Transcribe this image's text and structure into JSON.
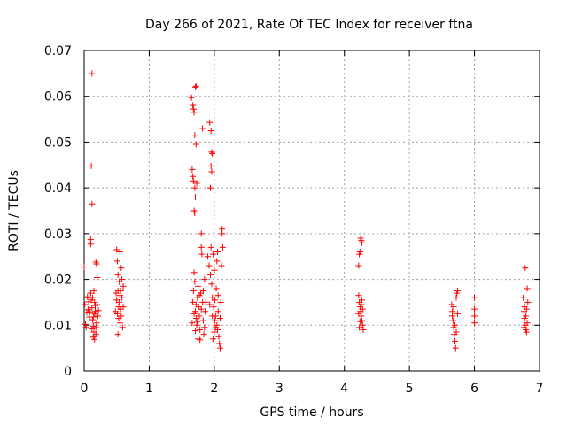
{
  "chart_data": {
    "type": "scatter",
    "title": "Day 266 of 2021, Rate Of TEC Index for receiver ftna",
    "xlabel": "GPS time / hours",
    "ylabel": "ROTI / TECUs",
    "xlim": [
      0,
      7
    ],
    "ylim": [
      0,
      0.07
    ],
    "xticks": [
      0,
      1,
      2,
      3,
      4,
      5,
      6,
      7
    ],
    "xtick_labels": [
      "0",
      "1",
      "2",
      "3",
      "4",
      "5",
      "6",
      "7"
    ],
    "yticks": [
      0,
      0.01,
      0.02,
      0.03,
      0.04,
      0.05,
      0.06,
      0.07
    ],
    "ytick_labels": [
      "0",
      "0.01",
      "0.02",
      "0.03",
      "0.04",
      "0.05",
      "0.06",
      "0.07"
    ],
    "grid": true,
    "marker": "plus",
    "color": "#ff0000",
    "series": [
      {
        "name": "ftna",
        "points": [
          [
            0.0,
            0.0227
          ],
          [
            0.01,
            0.0145
          ],
          [
            0.02,
            0.0102
          ],
          [
            0.03,
            0.0095
          ],
          [
            0.04,
            0.0128
          ],
          [
            0.05,
            0.0162
          ],
          [
            0.06,
            0.0134
          ],
          [
            0.07,
            0.0151
          ],
          [
            0.08,
            0.0118
          ],
          [
            0.09,
            0.0129
          ],
          [
            0.1,
            0.0277
          ],
          [
            0.1,
            0.0287
          ],
          [
            0.11,
            0.0448
          ],
          [
            0.12,
            0.065
          ],
          [
            0.12,
            0.0365
          ],
          [
            0.1,
            0.017
          ],
          [
            0.11,
            0.0155
          ],
          [
            0.12,
            0.0138
          ],
          [
            0.13,
            0.0112
          ],
          [
            0.14,
            0.0098
          ],
          [
            0.15,
            0.0085
          ],
          [
            0.16,
            0.0125
          ],
          [
            0.17,
            0.0143
          ],
          [
            0.18,
            0.0238
          ],
          [
            0.19,
            0.0234
          ],
          [
            0.2,
            0.0204
          ],
          [
            0.21,
            0.012
          ],
          [
            0.14,
            0.0074
          ],
          [
            0.16,
            0.0069
          ],
          [
            0.18,
            0.008
          ],
          [
            0.13,
            0.016
          ],
          [
            0.15,
            0.0175
          ],
          [
            0.17,
            0.013
          ],
          [
            0.19,
            0.0105
          ],
          [
            0.2,
            0.0145
          ],
          [
            0.22,
            0.0132
          ],
          [
            0.12,
            0.0092
          ],
          [
            0.14,
            0.0118
          ],
          [
            0.16,
            0.015
          ],
          [
            0.18,
            0.0095
          ],
          [
            0.48,
            0.013
          ],
          [
            0.49,
            0.017
          ],
          [
            0.5,
            0.0265
          ],
          [
            0.5,
            0.0155
          ],
          [
            0.51,
            0.024
          ],
          [
            0.52,
            0.021
          ],
          [
            0.52,
            0.008
          ],
          [
            0.53,
            0.014
          ],
          [
            0.54,
            0.0195
          ],
          [
            0.55,
            0.026
          ],
          [
            0.55,
            0.0105
          ],
          [
            0.56,
            0.0175
          ],
          [
            0.57,
            0.012
          ],
          [
            0.57,
            0.0225
          ],
          [
            0.58,
            0.016
          ],
          [
            0.59,
            0.0095
          ],
          [
            0.6,
            0.0185
          ],
          [
            0.6,
            0.014
          ],
          [
            0.51,
            0.0125
          ],
          [
            0.53,
            0.0115
          ],
          [
            0.54,
            0.015
          ],
          [
            0.56,
            0.0135
          ],
          [
            0.58,
            0.02
          ],
          [
            0.52,
            0.0175
          ],
          [
            0.55,
            0.0165
          ],
          [
            1.65,
            0.0597
          ],
          [
            1.67,
            0.058
          ],
          [
            1.68,
            0.0572
          ],
          [
            1.69,
            0.0565
          ],
          [
            1.7,
            0.0515
          ],
          [
            1.71,
            0.062
          ],
          [
            1.72,
            0.0622
          ],
          [
            1.72,
            0.0495
          ],
          [
            1.66,
            0.044
          ],
          [
            1.67,
            0.0425
          ],
          [
            1.68,
            0.0415
          ],
          [
            1.7,
            0.04
          ],
          [
            1.71,
            0.038
          ],
          [
            1.69,
            0.035
          ],
          [
            1.7,
            0.0345
          ],
          [
            1.73,
            0.041
          ],
          [
            1.67,
            0.015
          ],
          [
            1.68,
            0.0175
          ],
          [
            1.69,
            0.0215
          ],
          [
            1.7,
            0.0195
          ],
          [
            1.71,
            0.013
          ],
          [
            1.72,
            0.0115
          ],
          [
            1.73,
            0.01
          ],
          [
            1.74,
            0.016
          ],
          [
            1.75,
            0.0185
          ],
          [
            1.76,
            0.014
          ],
          [
            1.77,
            0.012
          ],
          [
            1.78,
            0.009
          ],
          [
            1.79,
            0.017
          ],
          [
            1.8,
            0.027
          ],
          [
            1.8,
            0.03
          ],
          [
            1.81,
            0.0255
          ],
          [
            1.82,
            0.053
          ],
          [
            1.82,
            0.015
          ],
          [
            1.83,
            0.011
          ],
          [
            1.84,
            0.008
          ],
          [
            1.85,
            0.02
          ],
          [
            1.86,
            0.013
          ],
          [
            1.75,
            0.007
          ],
          [
            1.78,
            0.0068
          ],
          [
            1.66,
            0.0105
          ],
          [
            1.69,
            0.0125
          ],
          [
            1.72,
            0.0145
          ],
          [
            1.74,
            0.0108
          ],
          [
            1.77,
            0.0165
          ],
          [
            1.8,
            0.0135
          ],
          [
            1.83,
            0.0175
          ],
          [
            1.85,
            0.0095
          ],
          [
            1.87,
            0.015
          ],
          [
            1.71,
            0.0088
          ],
          [
            1.93,
            0.0543
          ],
          [
            1.95,
            0.0525
          ],
          [
            1.96,
            0.0478
          ],
          [
            1.97,
            0.0475
          ],
          [
            1.95,
            0.0448
          ],
          [
            1.96,
            0.0435
          ],
          [
            1.94,
            0.04
          ],
          [
            1.9,
            0.025
          ],
          [
            1.92,
            0.023
          ],
          [
            1.94,
            0.021
          ],
          [
            1.95,
            0.027
          ],
          [
            1.96,
            0.019
          ],
          [
            1.97,
            0.016
          ],
          [
            1.98,
            0.0255
          ],
          [
            1.99,
            0.014
          ],
          [
            2.0,
            0.022
          ],
          [
            2.01,
            0.011
          ],
          [
            2.02,
            0.0095
          ],
          [
            2.03,
            0.018
          ],
          [
            2.04,
            0.024
          ],
          [
            2.05,
            0.026
          ],
          [
            2.06,
            0.013
          ],
          [
            2.07,
            0.0075
          ],
          [
            2.08,
            0.006
          ],
          [
            2.09,
            0.005
          ],
          [
            2.1,
            0.015
          ],
          [
            2.11,
            0.023
          ],
          [
            2.12,
            0.03
          ],
          [
            2.12,
            0.031
          ],
          [
            2.13,
            0.027
          ],
          [
            1.98,
            0.007
          ],
          [
            2.0,
            0.0085
          ],
          [
            2.02,
            0.012
          ],
          [
            2.04,
            0.01
          ],
          [
            2.06,
            0.0165
          ],
          [
            1.93,
            0.0145
          ],
          [
            1.97,
            0.012
          ],
          [
            2.01,
            0.0155
          ],
          [
            2.05,
            0.009
          ],
          [
            2.09,
            0.0115
          ],
          [
            4.22,
            0.023
          ],
          [
            4.23,
            0.0255
          ],
          [
            4.24,
            0.026
          ],
          [
            4.25,
            0.029
          ],
          [
            4.26,
            0.0285
          ],
          [
            4.27,
            0.028
          ],
          [
            4.22,
            0.0165
          ],
          [
            4.23,
            0.015
          ],
          [
            4.24,
            0.014
          ],
          [
            4.25,
            0.013
          ],
          [
            4.26,
            0.012
          ],
          [
            4.27,
            0.011
          ],
          [
            4.28,
            0.01
          ],
          [
            4.29,
            0.009
          ],
          [
            4.22,
            0.0125
          ],
          [
            4.24,
            0.0108
          ],
          [
            4.26,
            0.0145
          ],
          [
            4.28,
            0.0135
          ],
          [
            4.23,
            0.0095
          ],
          [
            4.27,
            0.0155
          ],
          [
            5.65,
            0.0145
          ],
          [
            5.66,
            0.013
          ],
          [
            5.67,
            0.011
          ],
          [
            5.68,
            0.0095
          ],
          [
            5.69,
            0.008
          ],
          [
            5.7,
            0.0065
          ],
          [
            5.71,
            0.005
          ],
          [
            5.72,
            0.016
          ],
          [
            5.73,
            0.017
          ],
          [
            5.74,
            0.0175
          ],
          [
            5.66,
            0.012
          ],
          [
            5.68,
            0.014
          ],
          [
            5.7,
            0.01
          ],
          [
            5.72,
            0.0085
          ],
          [
            5.74,
            0.0125
          ],
          [
            6.0,
            0.016
          ],
          [
            6.0,
            0.0135
          ],
          [
            6.0,
            0.012
          ],
          [
            6.0,
            0.0105
          ],
          [
            6.75,
            0.016
          ],
          [
            6.76,
            0.013
          ],
          [
            6.77,
            0.0115
          ],
          [
            6.78,
            0.01
          ],
          [
            6.78,
            0.0225
          ],
          [
            6.79,
            0.009
          ],
          [
            6.8,
            0.0085
          ],
          [
            6.81,
            0.018
          ],
          [
            6.82,
            0.015
          ],
          [
            6.77,
            0.014
          ],
          [
            6.79,
            0.012
          ],
          [
            6.81,
            0.0105
          ],
          [
            6.76,
            0.0095
          ],
          [
            6.8,
            0.0135
          ]
        ]
      }
    ]
  }
}
